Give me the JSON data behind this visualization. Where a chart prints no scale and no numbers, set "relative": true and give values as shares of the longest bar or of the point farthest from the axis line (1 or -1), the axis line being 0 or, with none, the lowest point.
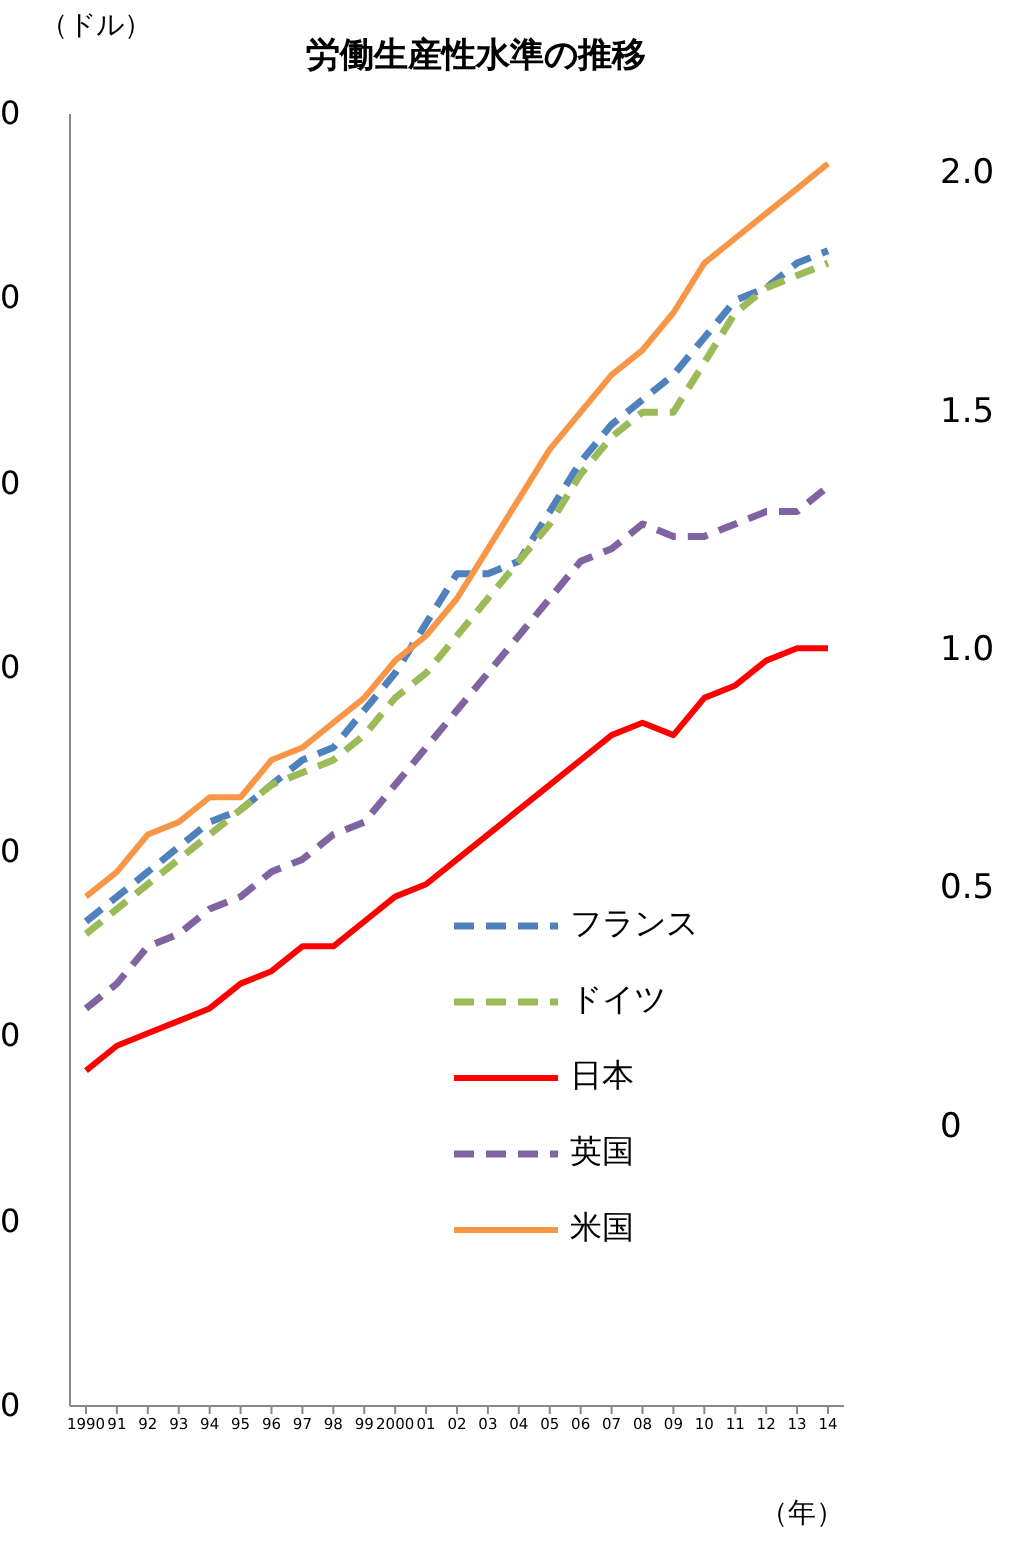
{
  "chart_data": {
    "type": "line",
    "title": "労働生産性水準の推移",
    "ylabel": "（ドル）",
    "xlabel": "（年）",
    "annotations": [
      "0",
      "0",
      "0",
      "0",
      "0",
      "0",
      "0",
      "0"
    ],
    "categories": [
      "1990",
      "91",
      "92",
      "93",
      "94",
      "95",
      "96",
      "97",
      "98",
      "99",
      "2000",
      "01",
      "02",
      "03",
      "04",
      "05",
      "06",
      "07",
      "08",
      "09",
      "10",
      "11",
      "12",
      "13",
      "14"
    ],
    "relative": true,
    "series": [
      {
        "name": "フランス",
        "color": "#4f81bd",
        "line_style": "dashed",
        "values": [
          0.39,
          0.41,
          0.43,
          0.45,
          0.47,
          0.48,
          0.5,
          0.52,
          0.53,
          0.56,
          0.59,
          0.63,
          0.67,
          0.67,
          0.68,
          0.72,
          0.76,
          0.79,
          0.81,
          0.83,
          0.86,
          0.89,
          0.9,
          0.92,
          0.93
        ]
      },
      {
        "name": "ドイツ",
        "color": "#9bbb59",
        "line_style": "dashed",
        "values": [
          0.38,
          0.4,
          0.42,
          0.44,
          0.46,
          0.48,
          0.5,
          0.51,
          0.52,
          0.54,
          0.57,
          0.59,
          0.62,
          0.65,
          0.68,
          0.71,
          0.75,
          0.78,
          0.8,
          0.8,
          0.84,
          0.88,
          0.9,
          0.91,
          0.92
        ]
      },
      {
        "name": "日本",
        "color": "#ff0000",
        "line_style": "solid",
        "values": [
          0.27,
          0.29,
          0.3,
          0.31,
          0.32,
          0.34,
          0.35,
          0.37,
          0.37,
          0.39,
          0.41,
          0.42,
          0.44,
          0.46,
          0.48,
          0.5,
          0.52,
          0.54,
          0.55,
          0.54,
          0.57,
          0.58,
          0.6,
          0.61,
          0.61
        ]
      },
      {
        "name": "英国",
        "color": "#8064a2",
        "line_style": "dashed",
        "values": [
          0.32,
          0.34,
          0.37,
          0.38,
          0.4,
          0.41,
          0.43,
          0.44,
          0.46,
          0.47,
          0.5,
          0.53,
          0.56,
          0.59,
          0.62,
          0.65,
          0.68,
          0.69,
          0.71,
          0.7,
          0.7,
          0.71,
          0.72,
          0.72,
          0.74
        ]
      },
      {
        "name": "米国",
        "color": "#f79646",
        "line_style": "solid",
        "values": [
          0.41,
          0.43,
          0.46,
          0.47,
          0.49,
          0.49,
          0.52,
          0.53,
          0.55,
          0.57,
          0.6,
          0.62,
          0.65,
          0.69,
          0.73,
          0.77,
          0.8,
          0.83,
          0.85,
          0.88,
          0.92,
          0.94,
          0.96,
          0.98,
          1
        ]
      }
    ],
    "y2lim": [
      -0.59,
      2.12
    ],
    "y2ticks": [
      {
        "value": 0,
        "label": "0"
      },
      {
        "value": 0.5,
        "label": "0.5"
      },
      {
        "value": 1,
        "label": "1.0"
      },
      {
        "value": 1.5,
        "label": "1.5"
      },
      {
        "value": 2,
        "label": "2.0"
      }
    ],
    "legend": "bottom right"
  }
}
